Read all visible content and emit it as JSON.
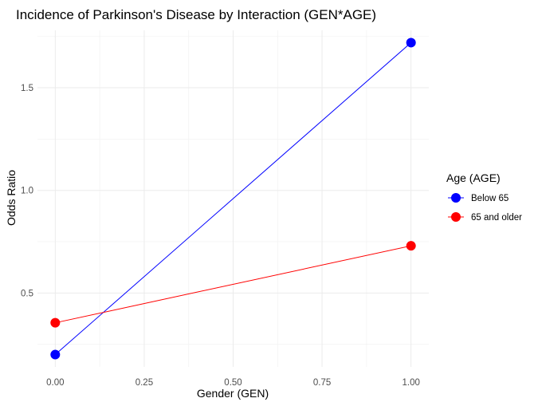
{
  "chart_data": {
    "type": "line",
    "title": "Incidence of Parkinson's Disease by Interaction (GEN*AGE)",
    "xlabel": "Gender (GEN)",
    "ylabel": "Odds Ratio",
    "xlim": [
      -0.05,
      1.05
    ],
    "ylim": [
      0.14,
      1.78
    ],
    "xticks": [
      0.0,
      0.25,
      0.5,
      0.75,
      1.0
    ],
    "xtick_labels": [
      "0.00",
      "0.25",
      "0.50",
      "0.75",
      "1.00"
    ],
    "yticks": [
      0.5,
      1.0,
      1.5
    ],
    "ytick_labels": [
      "0.5",
      "1.0",
      "1.5"
    ],
    "grid": true,
    "legend": {
      "title": "Age (AGE)",
      "position": "right"
    },
    "series": [
      {
        "name": "Below 65",
        "color": "#0000ff",
        "x": [
          0,
          1
        ],
        "values": [
          0.2,
          1.72
        ]
      },
      {
        "name": "65 and older",
        "color": "#ff0000",
        "x": [
          0,
          1
        ],
        "values": [
          0.355,
          0.73
        ]
      }
    ]
  }
}
